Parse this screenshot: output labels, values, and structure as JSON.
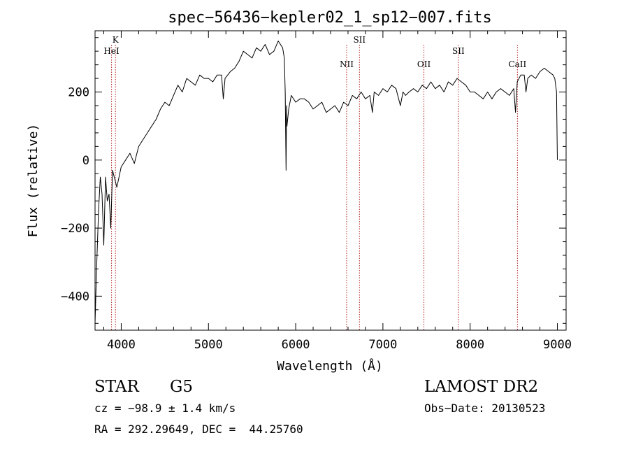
{
  "chart_data": {
    "type": "line",
    "title": "spec−56436−kepler02_1_sp12−007.fits",
    "xlabel": "Wavelength (Å)",
    "ylabel": "Flux (relative)",
    "xlim": [
      3700,
      9100
    ],
    "ylim": [
      -500,
      380
    ],
    "x_ticks": [
      4000,
      5000,
      6000,
      7000,
      8000,
      9000
    ],
    "y_ticks": [
      -400,
      -200,
      0,
      200
    ],
    "grid": false,
    "series": [
      {
        "x": [
          3700,
          3720,
          3740,
          3760,
          3780,
          3800,
          3820,
          3840,
          3860,
          3880,
          3900,
          3950,
          4000,
          4050,
          4100,
          4150,
          4200,
          4250,
          4300,
          4350,
          4400,
          4450,
          4500,
          4550,
          4600,
          4650,
          4700,
          4750,
          4800,
          4850,
          4900,
          4950,
          5000,
          5050,
          5100,
          5150,
          5170,
          5190,
          5250,
          5300,
          5350,
          5400,
          5450,
          5500,
          5550,
          5600,
          5650,
          5700,
          5750,
          5800,
          5850,
          5870,
          5880,
          5890,
          5895,
          5900,
          5920,
          5950,
          6000,
          6050,
          6100,
          6150,
          6200,
          6250,
          6300,
          6350,
          6400,
          6450,
          6500,
          6550,
          6600,
          6650,
          6700,
          6750,
          6800,
          6850,
          6880,
          6900,
          6950,
          7000,
          7050,
          7100,
          7150,
          7200,
          7230,
          7260,
          7300,
          7350,
          7400,
          7450,
          7500,
          7550,
          7600,
          7650,
          7700,
          7750,
          7800,
          7850,
          7900,
          7950,
          8000,
          8050,
          8100,
          8150,
          8200,
          8250,
          8300,
          8350,
          8400,
          8450,
          8500,
          8520,
          8540,
          8580,
          8620,
          8640,
          8660,
          8700,
          8750,
          8800,
          8850,
          8900,
          8950,
          8970,
          8990,
          9000
        ],
        "y": [
          -480,
          -300,
          -150,
          -50,
          -100,
          -250,
          -50,
          -120,
          -100,
          -200,
          -30,
          -80,
          -20,
          0,
          20,
          -10,
          40,
          60,
          80,
          100,
          120,
          150,
          170,
          160,
          190,
          220,
          200,
          240,
          230,
          220,
          250,
          240,
          240,
          230,
          250,
          250,
          180,
          240,
          260,
          270,
          290,
          320,
          310,
          300,
          330,
          320,
          340,
          310,
          320,
          350,
          330,
          300,
          200,
          -30,
          160,
          100,
          150,
          190,
          170,
          180,
          180,
          170,
          150,
          160,
          170,
          140,
          150,
          160,
          140,
          170,
          160,
          190,
          180,
          200,
          180,
          190,
          140,
          200,
          190,
          210,
          200,
          220,
          210,
          160,
          200,
          190,
          200,
          210,
          200,
          220,
          210,
          230,
          210,
          220,
          200,
          230,
          220,
          240,
          230,
          220,
          200,
          200,
          190,
          180,
          200,
          180,
          200,
          210,
          200,
          190,
          210,
          140,
          230,
          250,
          250,
          200,
          240,
          250,
          240,
          260,
          270,
          260,
          250,
          240,
          200,
          0
        ]
      }
    ],
    "line_markers": [
      {
        "label": "K",
        "x": 3934
      },
      {
        "label": "HeI",
        "x": 3889
      },
      {
        "label": "NII",
        "x": 6584
      },
      {
        "label": "SII",
        "x": 6731
      },
      {
        "label": "OII",
        "x": 7470
      },
      {
        "label": "SII",
        "x": 7865
      },
      {
        "label": "CaII",
        "x": 8542
      }
    ]
  },
  "info": {
    "object_class": "STAR",
    "subclass": "G5",
    "redshift": "cz = −98.9 ± 1.4 km/s",
    "coords": "RA = 292.29649, DEC =  44.25760",
    "survey": "LAMOST DR2",
    "obs_date": "Obs−Date: 20130523"
  },
  "colors": {
    "line": "#000000",
    "marker": "#b22222"
  }
}
